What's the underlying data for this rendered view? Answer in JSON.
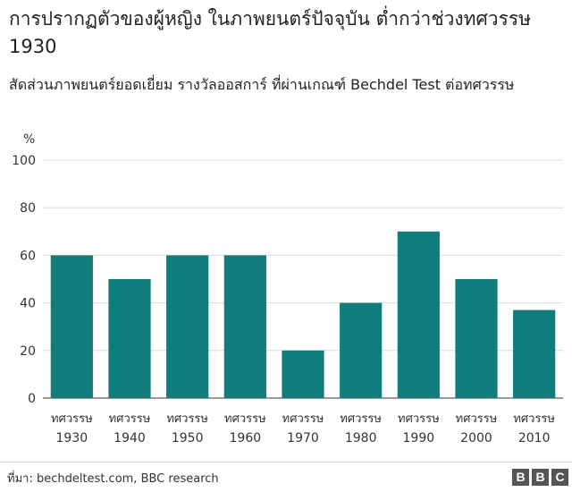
{
  "title": "การปรากฏตัวของผู้หญิง ในภาพยนตร์ปัจจุบัน ต่ำกว่าช่วงทศวรรษ 1930",
  "subtitle": "สัดส่วนภาพยนตร์ยอดเยี่ยม รางวัลออสการ์ ที่ผ่านเกณฑ์ Bechdel Test ต่อทศวรรษ",
  "source": "ที่มา: bechdeltest.com, BBC research",
  "logo": [
    "B",
    "B",
    "C"
  ],
  "chart_data": {
    "type": "bar",
    "ylabel": "%",
    "ylim": [
      0,
      100
    ],
    "yticks": [
      0,
      20,
      40,
      60,
      80,
      100
    ],
    "grid": true,
    "legend": "none",
    "category_prefix": "ทศวรรษ",
    "categories": [
      "1930",
      "1940",
      "1950",
      "1960",
      "1970",
      "1980",
      "1990",
      "2000",
      "2010"
    ],
    "values": [
      60,
      50,
      60,
      60,
      20,
      40,
      70,
      50,
      37
    ],
    "bar_color": "#117c7c"
  }
}
